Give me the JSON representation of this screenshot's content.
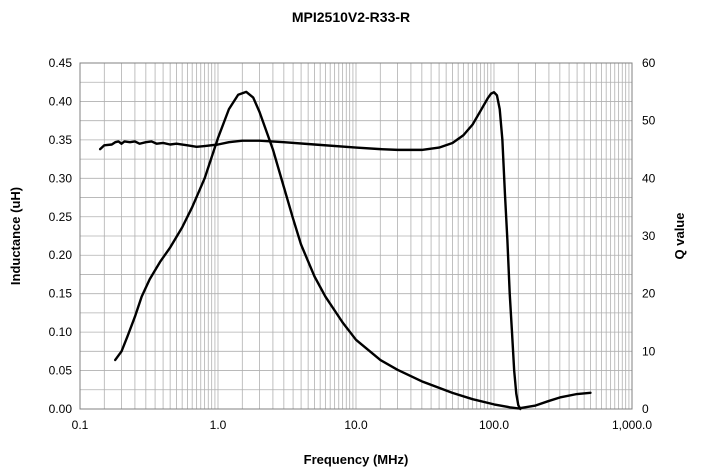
{
  "chart_data": {
    "type": "line",
    "title": "MPI2510V2-R33-R",
    "xlabel": "Frequency (MHz)",
    "ylabel": "Inductance (uH)",
    "y2label": "Q value",
    "x_scale": "log",
    "xlim": [
      0.1,
      1000
    ],
    "ylim": [
      0,
      0.45
    ],
    "y2lim": [
      0,
      60
    ],
    "grid": true,
    "legend": "none",
    "x_ticks": [
      {
        "value": 0.1,
        "label": "0.1"
      },
      {
        "value": 1,
        "label": "1.0"
      },
      {
        "value": 10,
        "label": "10.0"
      },
      {
        "value": 100,
        "label": "100.0"
      },
      {
        "value": 1000,
        "label": "1,000.0"
      }
    ],
    "y_ticks": [
      {
        "value": 0,
        "label": "0.00"
      },
      {
        "value": 0.05,
        "label": "0.05"
      },
      {
        "value": 0.1,
        "label": "0.10"
      },
      {
        "value": 0.15,
        "label": "0.15"
      },
      {
        "value": 0.2,
        "label": "0.20"
      },
      {
        "value": 0.25,
        "label": "0.25"
      },
      {
        "value": 0.3,
        "label": "0.30"
      },
      {
        "value": 0.35,
        "label": "0.35"
      },
      {
        "value": 0.4,
        "label": "0.40"
      },
      {
        "value": 0.45,
        "label": "0.45"
      }
    ],
    "y2_ticks": [
      {
        "value": 0,
        "label": "0"
      },
      {
        "value": 10,
        "label": "10"
      },
      {
        "value": 20,
        "label": "20"
      },
      {
        "value": 30,
        "label": "30"
      },
      {
        "value": 40,
        "label": "40"
      },
      {
        "value": 50,
        "label": "50"
      },
      {
        "value": 60,
        "label": "60"
      }
    ],
    "line_color": "#000000",
    "series": [
      {
        "axis": "left",
        "points": [
          [
            0.14,
            0.338
          ],
          [
            0.15,
            0.343
          ],
          [
            0.17,
            0.344
          ],
          [
            0.18,
            0.347
          ],
          [
            0.19,
            0.348
          ],
          [
            0.2,
            0.345
          ],
          [
            0.21,
            0.348
          ],
          [
            0.23,
            0.347
          ],
          [
            0.25,
            0.348
          ],
          [
            0.27,
            0.345
          ],
          [
            0.3,
            0.347
          ],
          [
            0.33,
            0.348
          ],
          [
            0.36,
            0.345
          ],
          [
            0.4,
            0.346
          ],
          [
            0.45,
            0.344
          ],
          [
            0.5,
            0.345
          ],
          [
            0.6,
            0.343
          ],
          [
            0.7,
            0.341
          ],
          [
            0.8,
            0.342
          ],
          [
            1.0,
            0.344
          ],
          [
            1.2,
            0.347
          ],
          [
            1.5,
            0.349
          ],
          [
            2.0,
            0.349
          ],
          [
            3.0,
            0.347
          ],
          [
            5.0,
            0.344
          ],
          [
            10,
            0.34
          ],
          [
            15,
            0.338
          ],
          [
            20,
            0.337
          ],
          [
            30,
            0.337
          ],
          [
            40,
            0.34
          ],
          [
            50,
            0.346
          ],
          [
            60,
            0.356
          ],
          [
            70,
            0.37
          ],
          [
            80,
            0.388
          ],
          [
            90,
            0.404
          ],
          [
            95,
            0.41
          ],
          [
            100,
            0.412
          ],
          [
            105,
            0.408
          ],
          [
            110,
            0.39
          ],
          [
            115,
            0.35
          ],
          [
            120,
            0.28
          ],
          [
            125,
            0.22
          ],
          [
            130,
            0.15
          ],
          [
            135,
            0.1
          ],
          [
            140,
            0.05
          ],
          [
            145,
            0.02
          ],
          [
            150,
            0.005
          ],
          [
            155,
            0.0
          ]
        ]
      },
      {
        "axis": "right",
        "points": [
          [
            0.18,
            8.5
          ],
          [
            0.2,
            10
          ],
          [
            0.22,
            12.5
          ],
          [
            0.25,
            16
          ],
          [
            0.28,
            19.5
          ],
          [
            0.32,
            22.5
          ],
          [
            0.38,
            25.5
          ],
          [
            0.45,
            28
          ],
          [
            0.55,
            31.5
          ],
          [
            0.65,
            35
          ],
          [
            0.8,
            40
          ],
          [
            1.0,
            47
          ],
          [
            1.2,
            52
          ],
          [
            1.4,
            54.5
          ],
          [
            1.6,
            55
          ],
          [
            1.8,
            54
          ],
          [
            2.0,
            51.5
          ],
          [
            2.5,
            45
          ],
          [
            3.0,
            38.5
          ],
          [
            3.5,
            33
          ],
          [
            4.0,
            28.5
          ],
          [
            5.0,
            23
          ],
          [
            6.0,
            19.5
          ],
          [
            8.0,
            15
          ],
          [
            10,
            12
          ],
          [
            15,
            8.5
          ],
          [
            20,
            6.8
          ],
          [
            30,
            4.8
          ],
          [
            50,
            2.8
          ],
          [
            70,
            1.7
          ],
          [
            100,
            0.8
          ],
          [
            130,
            0.3
          ],
          [
            150,
            0.1
          ],
          [
            200,
            0.6
          ],
          [
            250,
            1.4
          ],
          [
            300,
            2.0
          ],
          [
            400,
            2.6
          ],
          [
            500,
            2.8
          ]
        ]
      }
    ]
  }
}
